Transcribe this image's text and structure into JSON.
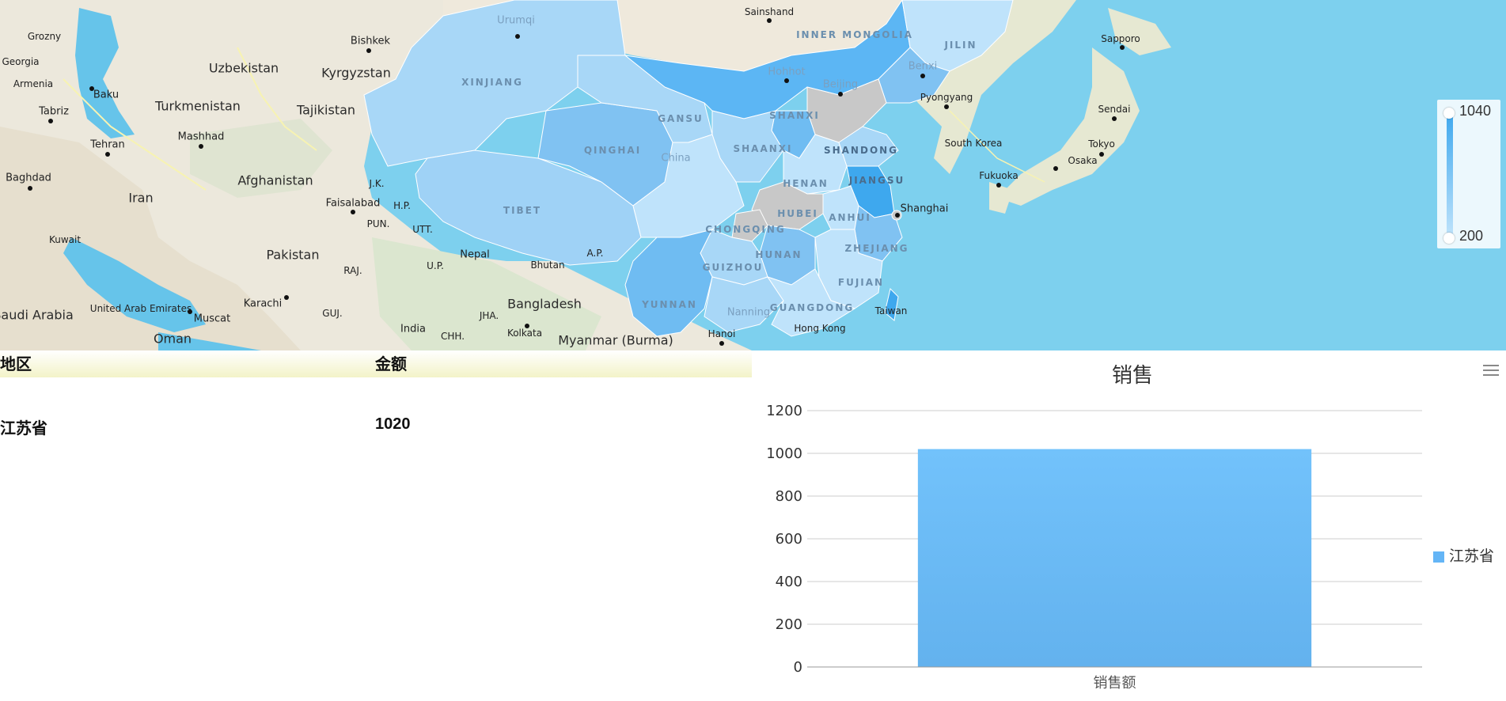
{
  "map": {
    "country_labels": [
      "Uzbekistan",
      "Kyrgyzstan",
      "Turkmenistan",
      "Tajikistan",
      "Afghanistan",
      "Iran",
      "Pakistan",
      "Saudi Arabia",
      "Oman",
      "India",
      "Bangladesh",
      "Myanmar (Burma)",
      "Nepal",
      "Bhutan",
      "South Korea",
      "Kuwait",
      "United Arab Emirates",
      "Georgia",
      "Armenia"
    ],
    "city_labels": [
      "Bishkek",
      "Tehran",
      "Mashhad",
      "Baku",
      "Tabriz",
      "Baghdad",
      "Grozny",
      "Faisalabad",
      "Karachi",
      "Muscat",
      "Kolkata",
      "Hanoi",
      "Nanning",
      "Shanghai",
      "Pyongyang",
      "Fukuoka",
      "Osaka",
      "Tokyo",
      "Sendai",
      "Sapporo",
      "Sainshand",
      "Hohhot",
      "Beijing",
      "Benxi",
      "Urumqi",
      "China",
      "Taiwan",
      "Hong Kong"
    ],
    "province_labels": [
      "XINJIANG",
      "INNER MONGOLIA",
      "JILIN",
      "GANSU",
      "QINGHAI",
      "TIBET",
      "SHAANXI",
      "SHANXI",
      "HENAN",
      "HUBEI",
      "ANHUI",
      "JIANGSU",
      "SHANDONG",
      "CHONGQING",
      "GUIZHOU",
      "HUNAN",
      "ZHEJIANG",
      "FUJIAN",
      "YUNNAN",
      "GUANGDONG",
      "J.K.",
      "H.P.",
      "PUN.",
      "UTT.",
      "RAJ.",
      "U.P.",
      "GUJ.",
      "JHA.",
      "CHH.",
      "A.P."
    ]
  },
  "visual_map": {
    "max": "1040",
    "min": "200",
    "color_high": "#3ea8ee",
    "color_low": "#bfe3fb"
  },
  "table": {
    "headers": [
      "地区",
      "金额"
    ],
    "rows": [
      [
        "江苏省",
        "1020"
      ]
    ]
  },
  "chart_data": {
    "type": "bar",
    "title": "销售",
    "categories": [
      "销售额"
    ],
    "series": [
      {
        "name": "江苏省",
        "values": [
          1020
        ]
      }
    ],
    "ylim": [
      0,
      1200
    ],
    "yticks": [
      "0",
      "200",
      "400",
      "600",
      "800",
      "1000",
      "1200"
    ],
    "grid": true,
    "legend": "right",
    "color": "#64b5f6"
  }
}
